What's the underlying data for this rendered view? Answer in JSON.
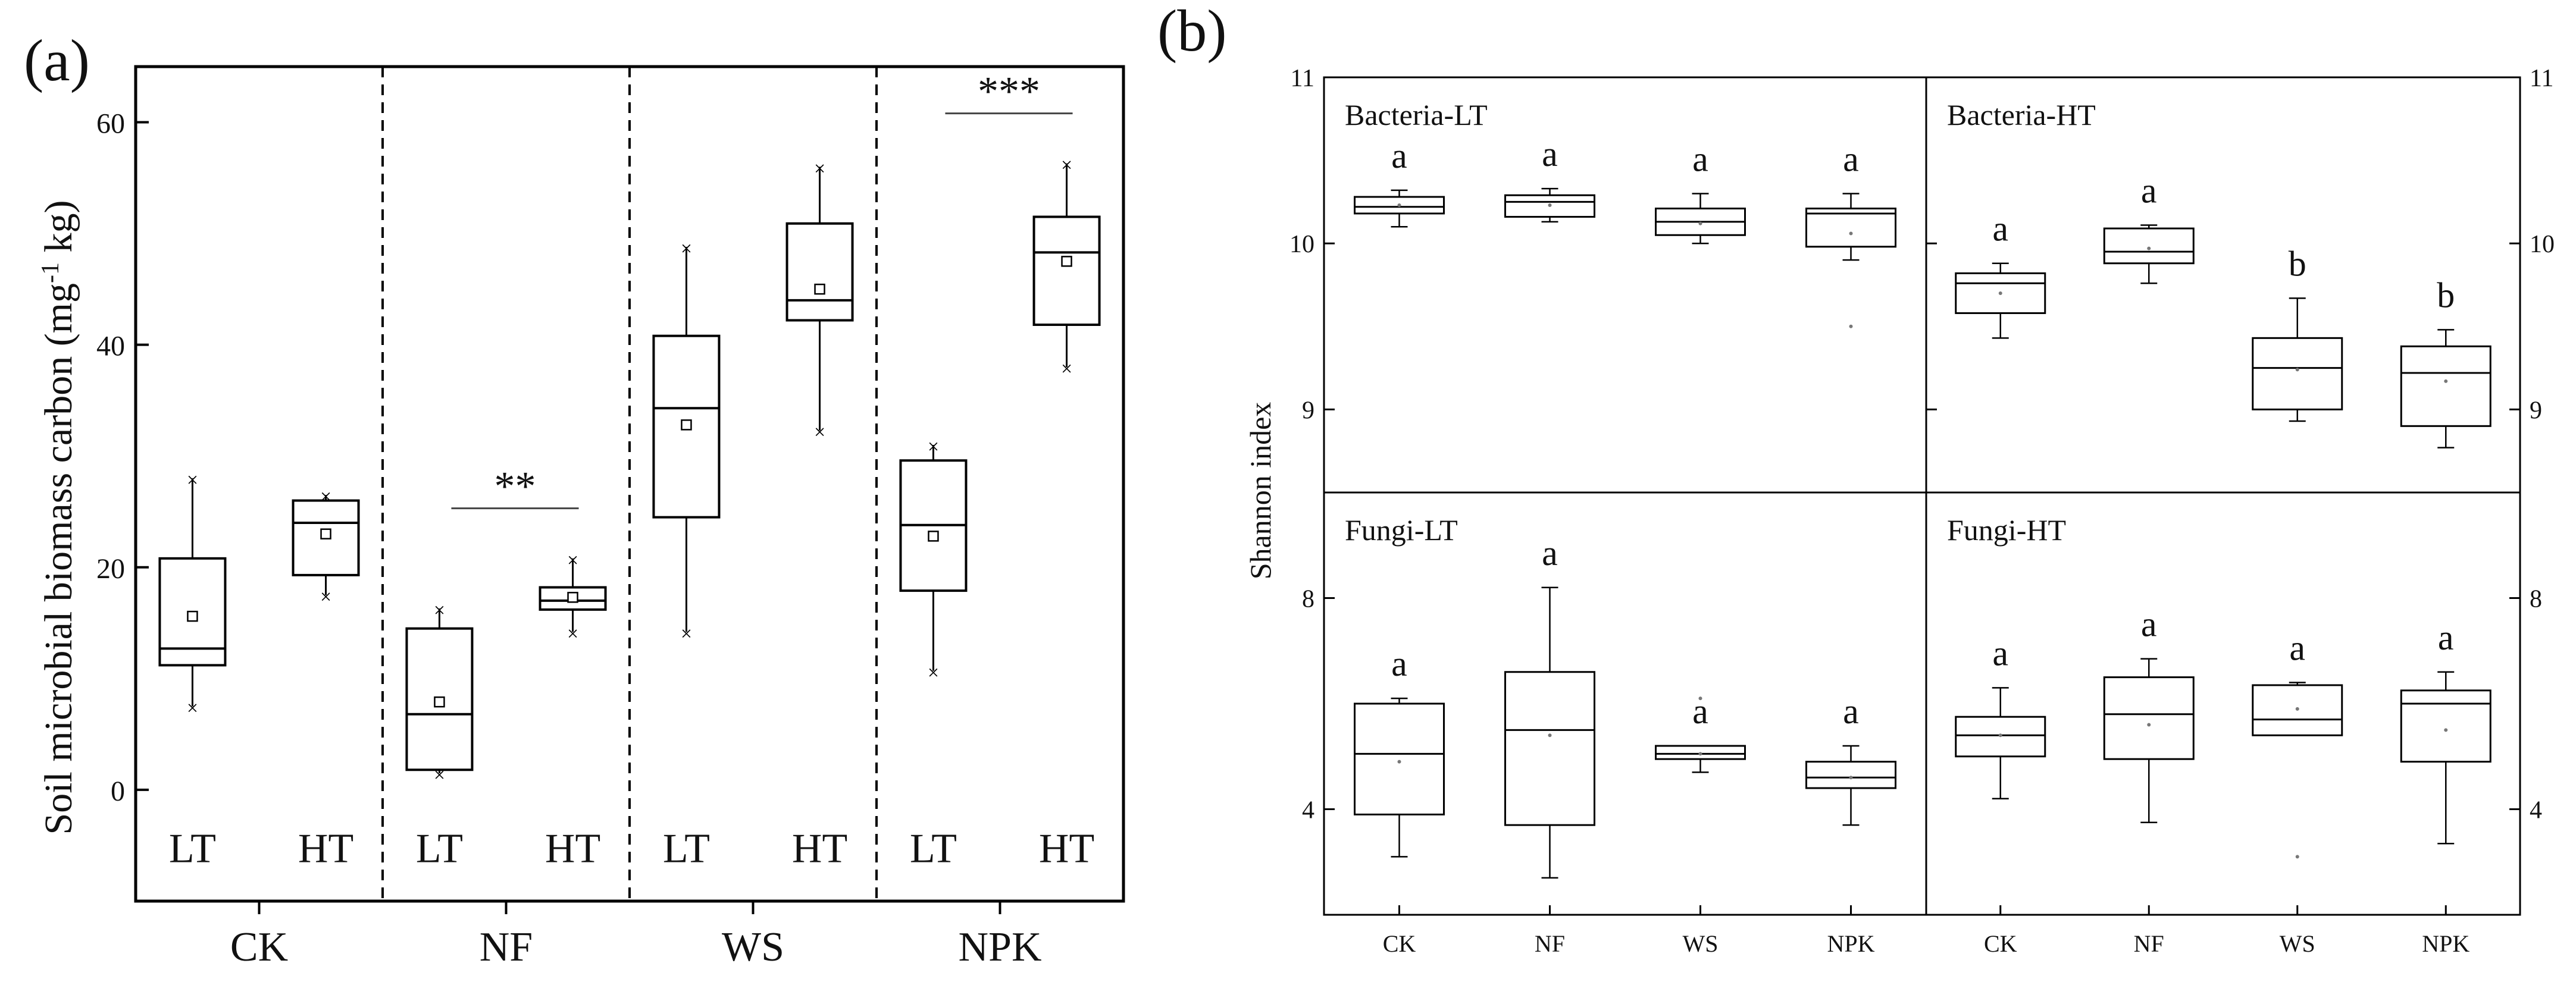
{
  "panel_a": {
    "label": "(a)",
    "ylabel_main": "Soil microbial biomass carbon (mg",
    "ylabel_sup": "-1",
    "ylabel_end": " kg)"
  },
  "panel_b": {
    "label": "(b)",
    "ylabel": "Shannon index"
  },
  "chart_data": [
    {
      "type": "box",
      "title": "Soil microbial biomass carbon",
      "ylabel": "Soil microbial biomass carbon (mg-1 kg)",
      "ylim": [
        -10,
        65
      ],
      "yticks": [
        0,
        20,
        40,
        60
      ],
      "groups": [
        "CK",
        "NF",
        "WS",
        "NPK"
      ],
      "subcategories": [
        "LT",
        "HT"
      ],
      "boxes": [
        {
          "group": "CK",
          "sub": "LT",
          "whisker_low": 7.5,
          "q1": 11.2,
          "median": 12.7,
          "q3": 20.8,
          "whisker_high": 28,
          "mean": 15.6
        },
        {
          "group": "CK",
          "sub": "HT",
          "whisker_low": 17.5,
          "q1": 19.3,
          "median": 24,
          "q3": 26,
          "whisker_high": 26.5,
          "mean": 23
        },
        {
          "group": "NF",
          "sub": "LT",
          "whisker_low": 1.5,
          "q1": 1.8,
          "median": 6.8,
          "q3": 14.5,
          "whisker_high": 16.3,
          "mean": 7.9
        },
        {
          "group": "NF",
          "sub": "HT",
          "whisker_low": 14.2,
          "q1": 16.2,
          "median": 17,
          "q3": 18.2,
          "whisker_high": 20.8,
          "mean": 17.3
        },
        {
          "group": "WS",
          "sub": "LT",
          "whisker_low": 14.2,
          "q1": 24.5,
          "median": 34.3,
          "q3": 40.8,
          "whisker_high": 48.8,
          "mean": 32.8
        },
        {
          "group": "WS",
          "sub": "HT",
          "whisker_low": 32.3,
          "q1": 42.2,
          "median": 44,
          "q3": 50.9,
          "whisker_high": 56,
          "mean": 45
        },
        {
          "group": "NPK",
          "sub": "LT",
          "whisker_low": 10.7,
          "q1": 17.9,
          "median": 23.8,
          "q3": 29.6,
          "whisker_high": 31,
          "mean": 22.8
        },
        {
          "group": "NPK",
          "sub": "HT",
          "whisker_low": 38,
          "q1": 41.8,
          "median": 48.3,
          "q3": 51.5,
          "whisker_high": 56.3,
          "mean": 47.5
        }
      ],
      "significance": [
        {
          "group": "NF",
          "label": "**"
        },
        {
          "group": "NPK",
          "label": "***"
        }
      ]
    },
    {
      "type": "box",
      "title": "Shannon index",
      "ylabel": "Shannon index",
      "categories": [
        "CK",
        "NF",
        "WS",
        "NPK"
      ],
      "panels": [
        {
          "name": "Bacteria-LT",
          "ylim": [
            8.5,
            11
          ],
          "yticks": [
            9,
            10,
            11
          ],
          "right_ticks": [
            9,
            10,
            11
          ],
          "boxes": [
            {
              "cat": "CK",
              "whisker_low": 10.1,
              "q1": 10.18,
              "median": 10.22,
              "q3": 10.28,
              "whisker_high": 10.32,
              "mean": 10.23,
              "letter": "a"
            },
            {
              "cat": "NF",
              "whisker_low": 10.13,
              "q1": 10.16,
              "median": 10.25,
              "q3": 10.29,
              "whisker_high": 10.33,
              "mean": 10.23,
              "letter": "a"
            },
            {
              "cat": "WS",
              "whisker_low": 10,
              "q1": 10.05,
              "median": 10.13,
              "q3": 10.21,
              "whisker_high": 10.3,
              "mean": 10.12,
              "letter": "a"
            },
            {
              "cat": "NPK",
              "whisker_low": 9.9,
              "q1": 9.98,
              "median": 10.18,
              "q3": 10.21,
              "whisker_high": 10.3,
              "mean": 10.06,
              "outlier": 9.5,
              "letter": "a"
            }
          ]
        },
        {
          "name": "Bacteria-HT",
          "ylim": [
            8.5,
            11
          ],
          "yticks": [
            9,
            10
          ],
          "right_ticks": [
            9,
            10,
            11
          ],
          "boxes": [
            {
              "cat": "CK",
              "whisker_low": 9.43,
              "q1": 9.58,
              "median": 9.76,
              "q3": 9.82,
              "whisker_high": 9.88,
              "mean": 9.7,
              "letter": "a"
            },
            {
              "cat": "NF",
              "whisker_low": 9.76,
              "q1": 9.88,
              "median": 9.95,
              "q3": 10.09,
              "whisker_high": 10.11,
              "mean": 9.97,
              "letter": "a"
            },
            {
              "cat": "WS",
              "whisker_low": 8.93,
              "q1": 9,
              "median": 9.25,
              "q3": 9.43,
              "whisker_high": 9.67,
              "mean": 9.24,
              "letter": "b"
            },
            {
              "cat": "NPK",
              "whisker_low": 8.77,
              "q1": 8.9,
              "median": 9.22,
              "q3": 9.38,
              "whisker_high": 9.48,
              "mean": 9.17,
              "letter": "b"
            }
          ]
        },
        {
          "name": "Fungi-LT",
          "ylim": [
            2,
            10
          ],
          "yticks": [
            4,
            8
          ],
          "boxes": [
            {
              "cat": "CK",
              "whisker_low": 3.1,
              "q1": 3.9,
              "median": 5.05,
              "q3": 6,
              "whisker_high": 6.1,
              "mean": 4.9,
              "letter": "a"
            },
            {
              "cat": "NF",
              "whisker_low": 2.7,
              "q1": 3.7,
              "median": 5.5,
              "q3": 6.6,
              "whisker_high": 8.2,
              "mean": 5.4,
              "letter": "a"
            },
            {
              "cat": "WS",
              "whisker_low": 4.7,
              "q1": 4.95,
              "median": 5.05,
              "q3": 5.2,
              "whisker_high": 5.2,
              "mean": 5.05,
              "outlier": 6.1,
              "letter": "a"
            },
            {
              "cat": "NPK",
              "whisker_low": 3.7,
              "q1": 4.4,
              "median": 4.6,
              "q3": 4.9,
              "whisker_high": 5.2,
              "mean": 4.6,
              "letter": "a"
            }
          ]
        },
        {
          "name": "Fungi-HT",
          "ylim": [
            2,
            10
          ],
          "yticks": [],
          "right_ticks": [
            4,
            8
          ],
          "boxes": [
            {
              "cat": "CK",
              "whisker_low": 4.2,
              "q1": 5,
              "median": 5.4,
              "q3": 5.75,
              "whisker_high": 6.3,
              "mean": 5.4,
              "letter": "a"
            },
            {
              "cat": "NF",
              "whisker_low": 3.75,
              "q1": 4.95,
              "median": 5.8,
              "q3": 6.5,
              "whisker_high": 6.85,
              "mean": 5.6,
              "letter": "a"
            },
            {
              "cat": "WS",
              "whisker_low": 5.4,
              "q1": 5.4,
              "median": 5.7,
              "q3": 6.35,
              "whisker_high": 6.4,
              "mean": 5.9,
              "outlier": 3.1,
              "letter": "a"
            },
            {
              "cat": "NPK",
              "whisker_low": 3.35,
              "q1": 4.9,
              "median": 6,
              "q3": 6.25,
              "whisker_high": 6.6,
              "mean": 5.5,
              "letter": "a"
            }
          ]
        }
      ]
    }
  ]
}
